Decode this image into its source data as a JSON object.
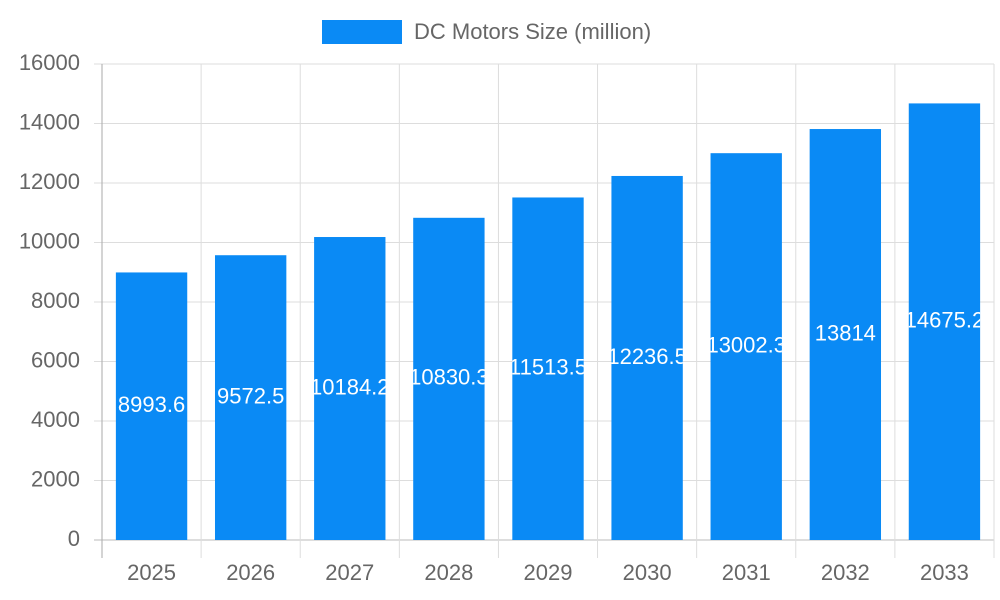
{
  "chart_data": {
    "type": "bar",
    "categories": [
      "2025",
      "2026",
      "2027",
      "2028",
      "2029",
      "2030",
      "2031",
      "2032",
      "2033"
    ],
    "series": [
      {
        "name": "DC Motors Size (million)",
        "color": "#0a8af5",
        "values": [
          8993.6,
          9572.5,
          10184.2,
          10830.3,
          11513.5,
          12236.5,
          13002.3,
          13814,
          14675.2
        ]
      }
    ],
    "ylim": [
      0,
      16000
    ],
    "yticks": [
      0,
      2000,
      4000,
      6000,
      8000,
      10000,
      12000,
      14000,
      16000
    ],
    "grid": true,
    "data_labels": true,
    "legend": "top"
  }
}
